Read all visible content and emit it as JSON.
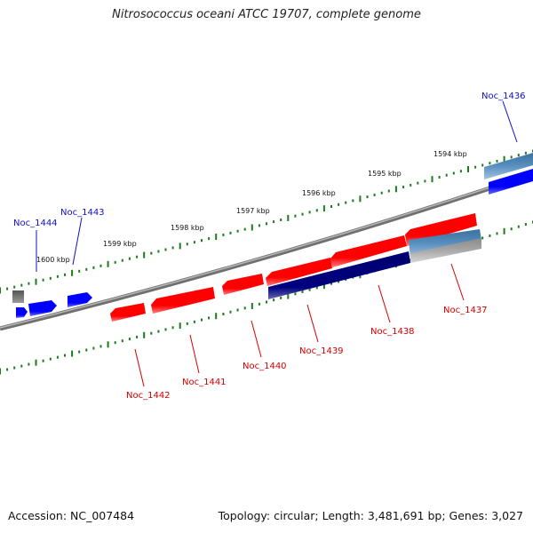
{
  "title": "Nitrosococcus oceani ATCC 19707, complete genome",
  "accession": "Accession: NC_007484",
  "summary": "Topology: circular; Length: 3,481,691 bp; Genes: 3,027",
  "kbp_labels": [
    "1594 kbp",
    "1595 kbp",
    "1596 kbp",
    "1597 kbp",
    "1598 kbp",
    "1599 kbp",
    "1600 kbp"
  ],
  "gene_labels": [
    "Noc_1436",
    "Noc_1437",
    "Noc_1438",
    "Noc_1439",
    "Noc_1440",
    "Noc_1441",
    "Noc_1442",
    "Noc_1443",
    "Noc_1444"
  ],
  "colors": {
    "forward_gene": "#ff0000",
    "reverse_gene": "#0000ff",
    "tick": "#1e7a1e",
    "backbone": "#7a7a7a",
    "label_red": "#d40000",
    "label_blue": "#1010c8"
  }
}
